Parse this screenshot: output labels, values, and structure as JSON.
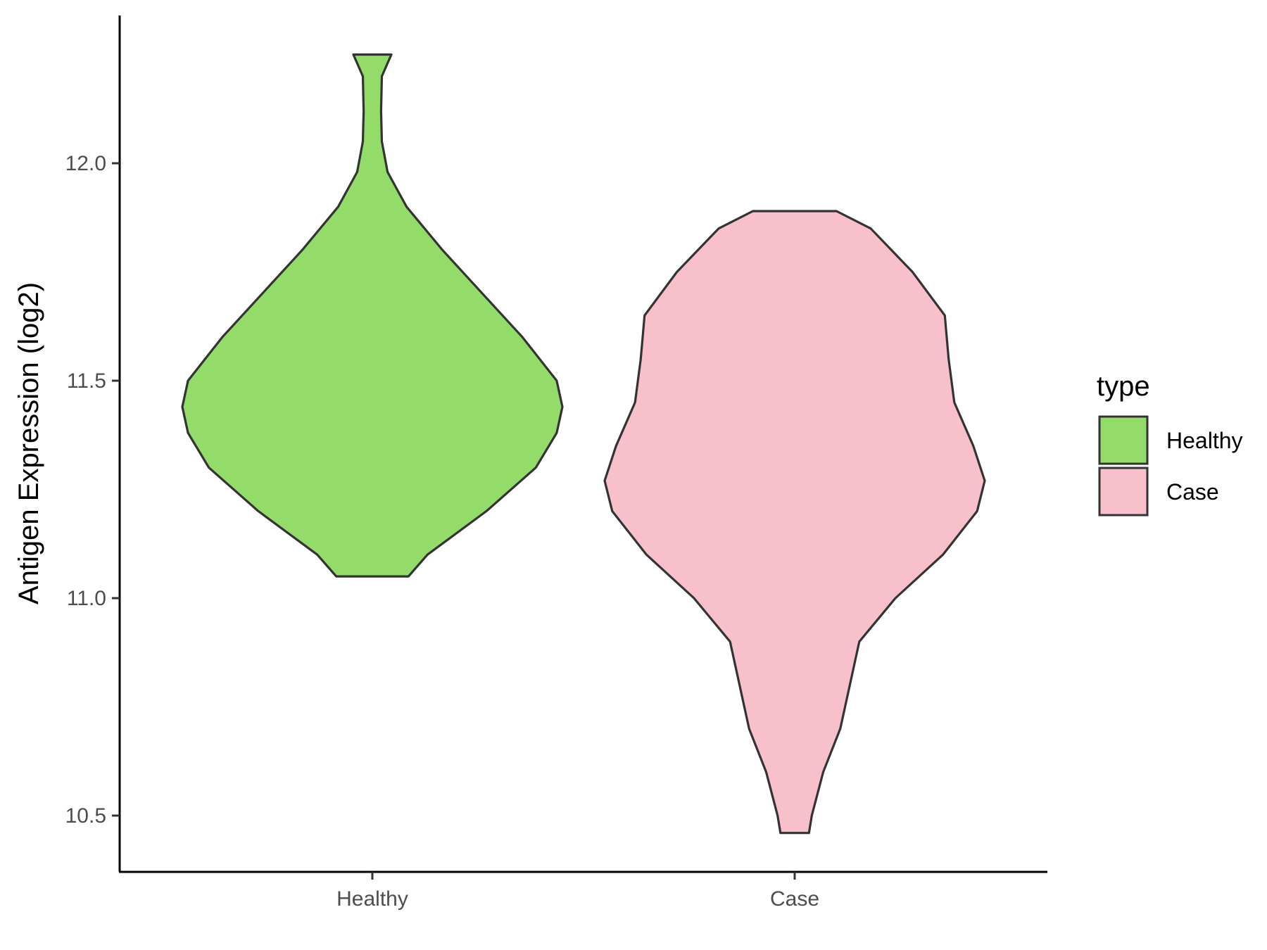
{
  "chart_data": {
    "type": "violin",
    "title": "",
    "xlabel": "",
    "ylabel": "Antigen Expression (log2)",
    "categories": [
      "Healthy",
      "Case"
    ],
    "ylim": [
      10.37,
      12.34
    ],
    "y_ticks": [
      10.5,
      11.0,
      11.5,
      12.0
    ],
    "y_tick_labels": [
      "10.5",
      "11.0",
      "11.5",
      "12.0"
    ],
    "grid": false,
    "legend": {
      "title": "type",
      "position": "right",
      "entries": [
        "Healthy",
        "Case"
      ]
    },
    "series": [
      {
        "name": "Healthy",
        "color": "#93DC6A",
        "min": 11.05,
        "max": 12.25,
        "density_profile": [
          [
            11.05,
            0.19
          ],
          [
            11.1,
            0.29
          ],
          [
            11.2,
            0.6
          ],
          [
            11.3,
            0.86
          ],
          [
            11.38,
            0.97
          ],
          [
            11.44,
            1.0
          ],
          [
            11.5,
            0.97
          ],
          [
            11.6,
            0.79
          ],
          [
            11.7,
            0.58
          ],
          [
            11.8,
            0.37
          ],
          [
            11.9,
            0.18
          ],
          [
            11.98,
            0.08
          ],
          [
            12.05,
            0.05
          ],
          [
            12.12,
            0.046
          ],
          [
            12.2,
            0.05
          ],
          [
            12.25,
            0.1
          ]
        ]
      },
      {
        "name": "Case",
        "color": "#F7C0CB",
        "min": 10.46,
        "max": 11.89,
        "density_profile": [
          [
            10.46,
            0.075
          ],
          [
            10.5,
            0.09
          ],
          [
            10.6,
            0.15
          ],
          [
            10.7,
            0.24
          ],
          [
            10.8,
            0.29
          ],
          [
            10.9,
            0.34
          ],
          [
            11.0,
            0.53
          ],
          [
            11.1,
            0.78
          ],
          [
            11.2,
            0.96
          ],
          [
            11.27,
            1.0
          ],
          [
            11.35,
            0.94
          ],
          [
            11.45,
            0.84
          ],
          [
            11.55,
            0.81
          ],
          [
            11.65,
            0.79
          ],
          [
            11.75,
            0.62
          ],
          [
            11.85,
            0.4
          ],
          [
            11.89,
            0.22
          ]
        ]
      }
    ]
  }
}
